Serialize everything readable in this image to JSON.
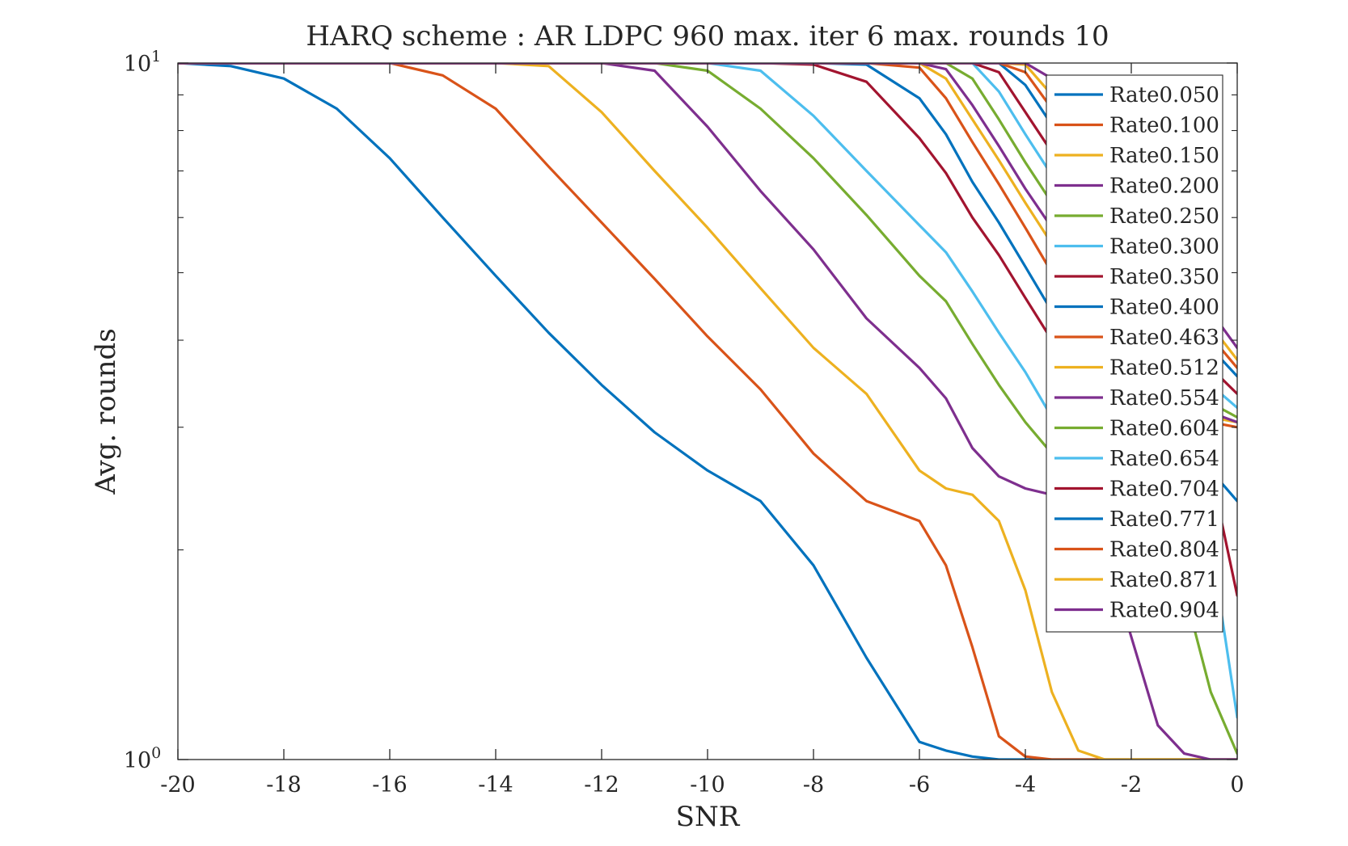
{
  "chart_data": {
    "type": "line",
    "title": "HARQ scheme : AR LDPC 960 max. iter 6 max. rounds 10",
    "xlabel": "SNR",
    "ylabel": "Avg. rounds",
    "xlim": [
      -20,
      0
    ],
    "ylim": [
      1,
      10
    ],
    "yscale": "log",
    "grid": false,
    "legend_position": "top-right",
    "x_ticks": [
      "-20",
      "-18",
      "-16",
      "-14",
      "-12",
      "-10",
      "-8",
      "-6",
      "-4",
      "-2",
      "0"
    ],
    "y_ticks": [
      {
        "value": 1,
        "base": "10",
        "exp": "0"
      },
      {
        "value": 10,
        "base": "10",
        "exp": "1"
      }
    ],
    "x": [
      -20,
      -19,
      -18,
      -17,
      -16,
      -15,
      -14,
      -13,
      -12,
      -11,
      -10,
      -9,
      -8,
      -7,
      -6,
      -5.5,
      -5,
      -4.5,
      -4,
      -3.5,
      -3,
      -2.5,
      -2,
      -1.5,
      -1,
      -0.5,
      0
    ],
    "series": [
      {
        "name": "Rate0.050",
        "color": "#0072BD",
        "values": [
          10.0,
          9.9,
          9.5,
          8.6,
          7.3,
          6.0,
          4.95,
          4.1,
          3.45,
          2.95,
          2.6,
          2.35,
          1.9,
          1.4,
          1.06,
          1.03,
          1.01,
          1.0,
          1.0,
          1.0,
          1.0,
          1.0,
          1.0,
          1.0,
          1.0,
          1.0,
          1.0
        ]
      },
      {
        "name": "Rate0.100",
        "color": "#D95319",
        "values": [
          10.0,
          10.0,
          10.0,
          10.0,
          10.0,
          9.6,
          8.6,
          7.1,
          5.9,
          4.9,
          4.05,
          3.4,
          2.75,
          2.35,
          2.2,
          1.9,
          1.45,
          1.08,
          1.01,
          1.0,
          1.0,
          1.0,
          1.0,
          1.0,
          1.0,
          1.0,
          1.0
        ]
      },
      {
        "name": "Rate0.150",
        "color": "#EDB120",
        "values": [
          10.0,
          10.0,
          10.0,
          10.0,
          10.0,
          10.0,
          10.0,
          9.9,
          8.5,
          7.0,
          5.8,
          4.75,
          3.9,
          3.35,
          2.6,
          2.45,
          2.4,
          2.2,
          1.75,
          1.25,
          1.03,
          1.0,
          1.0,
          1.0,
          1.0,
          1.0,
          1.0
        ]
      },
      {
        "name": "Rate0.200",
        "color": "#7E2F8E",
        "values": [
          10.0,
          10.0,
          10.0,
          10.0,
          10.0,
          10.0,
          10.0,
          10.0,
          10.0,
          9.75,
          8.1,
          6.55,
          5.4,
          4.3,
          3.65,
          3.3,
          2.8,
          2.55,
          2.45,
          2.4,
          2.35,
          2.0,
          1.5,
          1.12,
          1.02,
          1.0,
          1.0
        ]
      },
      {
        "name": "Rate0.250",
        "color": "#77AC30",
        "values": [
          10.0,
          10.0,
          10.0,
          10.0,
          10.0,
          10.0,
          10.0,
          10.0,
          10.0,
          10.0,
          9.75,
          8.6,
          7.3,
          6.05,
          4.95,
          4.55,
          3.95,
          3.45,
          3.05,
          2.75,
          2.5,
          2.45,
          2.4,
          2.2,
          1.75,
          1.25,
          1.02
        ]
      },
      {
        "name": "Rate0.300",
        "color": "#4DBEEE",
        "values": [
          10.0,
          10.0,
          10.0,
          10.0,
          10.0,
          10.0,
          10.0,
          10.0,
          10.0,
          10.0,
          10.0,
          9.75,
          8.4,
          7.0,
          5.85,
          5.35,
          4.7,
          4.1,
          3.6,
          3.1,
          2.85,
          2.75,
          2.7,
          2.65,
          2.5,
          2.05,
          1.15
        ]
      },
      {
        "name": "Rate0.350",
        "color": "#A2142F",
        "values": [
          10.0,
          10.0,
          10.0,
          10.0,
          10.0,
          10.0,
          10.0,
          10.0,
          10.0,
          10.0,
          10.0,
          10.0,
          9.95,
          9.4,
          7.8,
          6.95,
          6.0,
          5.3,
          4.6,
          4.0,
          3.4,
          3.1,
          3.0,
          2.95,
          2.9,
          2.6,
          1.72
        ]
      },
      {
        "name": "Rate0.400",
        "color": "#0072BD",
        "values": [
          10.0,
          10.0,
          10.0,
          10.0,
          10.0,
          10.0,
          10.0,
          10.0,
          10.0,
          10.0,
          10.0,
          10.0,
          10.0,
          9.95,
          8.9,
          7.9,
          6.75,
          5.9,
          5.1,
          4.4,
          3.85,
          3.3,
          3.05,
          2.95,
          2.85,
          2.6,
          2.35
        ]
      },
      {
        "name": "Rate0.463",
        "color": "#D95319",
        "values": [
          10.0,
          10.0,
          10.0,
          10.0,
          10.0,
          10.0,
          10.0,
          10.0,
          10.0,
          10.0,
          10.0,
          10.0,
          10.0,
          10.0,
          9.85,
          8.9,
          7.7,
          6.7,
          5.8,
          5.0,
          4.4,
          3.9,
          3.5,
          3.25,
          3.1,
          3.05,
          3.0
        ]
      },
      {
        "name": "Rate0.512",
        "color": "#EDB120",
        "values": [
          10.0,
          10.0,
          10.0,
          10.0,
          10.0,
          10.0,
          10.0,
          10.0,
          10.0,
          10.0,
          10.0,
          10.0,
          10.0,
          10.0,
          10.0,
          9.5,
          8.3,
          7.25,
          6.3,
          5.5,
          4.8,
          4.2,
          3.75,
          3.4,
          3.2,
          3.1,
          3.05
        ]
      },
      {
        "name": "Rate0.554",
        "color": "#7E2F8E",
        "values": [
          10.0,
          10.0,
          10.0,
          10.0,
          10.0,
          10.0,
          10.0,
          10.0,
          10.0,
          10.0,
          10.0,
          10.0,
          10.0,
          10.0,
          10.0,
          9.8,
          8.7,
          7.6,
          6.6,
          5.8,
          5.05,
          4.45,
          3.95,
          3.55,
          3.3,
          3.15,
          3.05
        ]
      },
      {
        "name": "Rate0.604",
        "color": "#77AC30",
        "values": [
          10.0,
          10.0,
          10.0,
          10.0,
          10.0,
          10.0,
          10.0,
          10.0,
          10.0,
          10.0,
          10.0,
          10.0,
          10.0,
          10.0,
          10.0,
          10.0,
          9.5,
          8.3,
          7.2,
          6.3,
          5.5,
          4.85,
          4.3,
          3.85,
          3.5,
          3.25,
          3.1
        ]
      },
      {
        "name": "Rate0.654",
        "color": "#4DBEEE",
        "values": [
          10.0,
          10.0,
          10.0,
          10.0,
          10.0,
          10.0,
          10.0,
          10.0,
          10.0,
          10.0,
          10.0,
          10.0,
          10.0,
          10.0,
          10.0,
          10.0,
          10.0,
          9.1,
          7.9,
          6.9,
          6.05,
          5.3,
          4.7,
          4.2,
          3.8,
          3.45,
          3.2
        ]
      },
      {
        "name": "Rate0.704",
        "color": "#A2142F",
        "values": [
          10.0,
          10.0,
          10.0,
          10.0,
          10.0,
          10.0,
          10.0,
          10.0,
          10.0,
          10.0,
          10.0,
          10.0,
          10.0,
          10.0,
          10.0,
          10.0,
          10.0,
          9.7,
          8.5,
          7.45,
          6.5,
          5.7,
          5.05,
          4.5,
          4.05,
          3.65,
          3.35
        ]
      },
      {
        "name": "Rate0.771",
        "color": "#0072BD",
        "values": [
          10.0,
          10.0,
          10.0,
          10.0,
          10.0,
          10.0,
          10.0,
          10.0,
          10.0,
          10.0,
          10.0,
          10.0,
          10.0,
          10.0,
          10.0,
          10.0,
          10.0,
          10.0,
          9.3,
          8.15,
          7.15,
          6.3,
          5.55,
          4.9,
          4.35,
          3.9,
          3.55
        ]
      },
      {
        "name": "Rate0.804",
        "color": "#D95319",
        "values": [
          10.0,
          10.0,
          10.0,
          10.0,
          10.0,
          10.0,
          10.0,
          10.0,
          10.0,
          10.0,
          10.0,
          10.0,
          10.0,
          10.0,
          10.0,
          10.0,
          10.0,
          10.0,
          9.7,
          8.6,
          7.55,
          6.6,
          5.85,
          5.15,
          4.55,
          4.05,
          3.65
        ]
      },
      {
        "name": "Rate0.871",
        "color": "#EDB120",
        "values": [
          10.0,
          10.0,
          10.0,
          10.0,
          10.0,
          10.0,
          10.0,
          10.0,
          10.0,
          10.0,
          10.0,
          10.0,
          10.0,
          10.0,
          10.0,
          10.0,
          10.0,
          10.0,
          9.95,
          9.0,
          7.95,
          7.0,
          6.15,
          5.4,
          4.75,
          4.2,
          3.75
        ]
      },
      {
        "name": "Rate0.904",
        "color": "#7E2F8E",
        "values": [
          10.0,
          10.0,
          10.0,
          10.0,
          10.0,
          10.0,
          10.0,
          10.0,
          10.0,
          10.0,
          10.0,
          10.0,
          10.0,
          10.0,
          10.0,
          10.0,
          10.0,
          10.0,
          10.0,
          9.5,
          8.4,
          7.4,
          6.5,
          5.7,
          5.0,
          4.4,
          3.9
        ]
      }
    ]
  }
}
